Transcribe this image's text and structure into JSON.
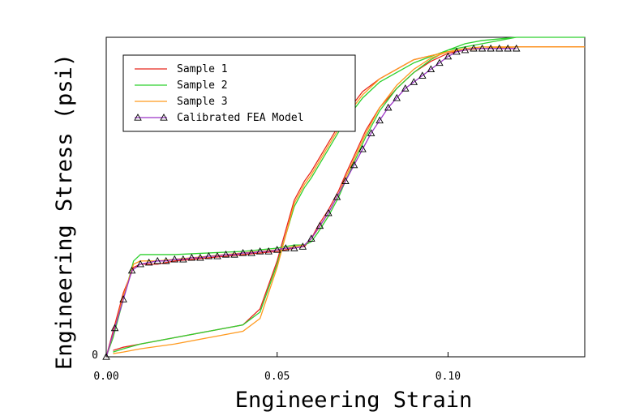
{
  "chart_data": {
    "type": "line",
    "title": "",
    "xlabel": "Engineering Strain",
    "ylabel": "Engineering Stress (psi)",
    "xlim": [
      0,
      0.14
    ],
    "ylim": [
      0,
      1.0
    ],
    "x_ticks": [
      0.0,
      0.05,
      0.1
    ],
    "x_tick_labels": [
      "0.00",
      "0.05",
      "0.10"
    ],
    "y_ticks": [
      0
    ],
    "y_tick_labels": [
      "0"
    ],
    "grid": false,
    "legend_position": "top-left",
    "series": [
      {
        "name": "Sample 1",
        "color": "#e8261c",
        "marker": "none",
        "x": [
          0,
          0.002,
          0.005,
          0.008,
          0.01,
          0.015,
          0.02,
          0.03,
          0.04,
          0.05,
          0.055,
          0.058,
          0.06,
          0.062,
          0.065,
          0.068,
          0.07,
          0.073,
          0.076,
          0.08,
          0.085,
          0.09,
          0.095,
          0.1,
          0.105,
          0.11,
          0.12,
          0.13,
          0.14,
          0.13,
          0.12,
          0.11,
          0.1,
          0.09,
          0.08,
          0.075,
          0.07,
          0.065,
          0.06,
          0.058,
          0.055,
          0.05,
          0.045,
          0.04,
          0.03,
          0.02,
          0.01,
          0.005,
          0.002
        ],
        "y": [
          0,
          0.08,
          0.2,
          0.28,
          0.29,
          0.29,
          0.3,
          0.31,
          0.32,
          0.33,
          0.34,
          0.345,
          0.37,
          0.41,
          0.46,
          0.52,
          0.57,
          0.64,
          0.71,
          0.78,
          0.84,
          0.89,
          0.925,
          0.95,
          0.96,
          0.965,
          0.97,
          0.97,
          0.97,
          0.97,
          0.97,
          0.965,
          0.955,
          0.93,
          0.87,
          0.83,
          0.76,
          0.67,
          0.58,
          0.55,
          0.49,
          0.3,
          0.15,
          0.1,
          0.08,
          0.06,
          0.04,
          0.03,
          0.02
        ]
      },
      {
        "name": "Sample 2",
        "color": "#2ed12e",
        "marker": "none",
        "x": [
          0,
          0.002,
          0.005,
          0.008,
          0.01,
          0.015,
          0.02,
          0.03,
          0.04,
          0.05,
          0.055,
          0.058,
          0.06,
          0.062,
          0.065,
          0.068,
          0.07,
          0.073,
          0.076,
          0.08,
          0.085,
          0.09,
          0.095,
          0.1,
          0.105,
          0.11,
          0.12,
          0.13,
          0.14,
          0.13,
          0.12,
          0.11,
          0.1,
          0.09,
          0.08,
          0.075,
          0.07,
          0.065,
          0.06,
          0.058,
          0.055,
          0.05,
          0.045,
          0.04,
          0.03,
          0.02,
          0.01,
          0.005,
          0.002
        ],
        "y": [
          0,
          0.06,
          0.18,
          0.3,
          0.32,
          0.32,
          0.32,
          0.325,
          0.33,
          0.34,
          0.35,
          0.35,
          0.36,
          0.39,
          0.44,
          0.5,
          0.55,
          0.62,
          0.69,
          0.77,
          0.84,
          0.89,
          0.93,
          0.96,
          0.98,
          0.99,
          1.0,
          1.0,
          1.0,
          1.0,
          1.0,
          0.98,
          0.96,
          0.92,
          0.86,
          0.81,
          0.74,
          0.65,
          0.56,
          0.53,
          0.47,
          0.29,
          0.14,
          0.1,
          0.08,
          0.06,
          0.04,
          0.025,
          0.015
        ]
      },
      {
        "name": "Sample 3",
        "color": "#ff9a1f",
        "marker": "none",
        "x": [
          0,
          0.002,
          0.005,
          0.008,
          0.01,
          0.015,
          0.02,
          0.03,
          0.04,
          0.05,
          0.055,
          0.058,
          0.06,
          0.062,
          0.065,
          0.068,
          0.07,
          0.073,
          0.076,
          0.08,
          0.085,
          0.09,
          0.095,
          0.1,
          0.105,
          0.11,
          0.12,
          0.13,
          0.14,
          0.13,
          0.12,
          0.11,
          0.1,
          0.09,
          0.08,
          0.075,
          0.07,
          0.065,
          0.06,
          0.058,
          0.055,
          0.05,
          0.045,
          0.04,
          0.03,
          0.02,
          0.01,
          0.005,
          0.002
        ],
        "y": [
          0,
          0.07,
          0.19,
          0.29,
          0.3,
          0.3,
          0.305,
          0.315,
          0.325,
          0.335,
          0.345,
          0.35,
          0.37,
          0.4,
          0.45,
          0.51,
          0.56,
          0.63,
          0.7,
          0.78,
          0.85,
          0.9,
          0.935,
          0.955,
          0.965,
          0.97,
          0.97,
          0.97,
          0.97,
          0.97,
          0.97,
          0.965,
          0.955,
          0.93,
          0.87,
          0.82,
          0.75,
          0.66,
          0.57,
          0.54,
          0.48,
          0.28,
          0.12,
          0.08,
          0.06,
          0.04,
          0.025,
          0.015,
          0.01
        ]
      },
      {
        "name": "Calibrated FEA Model",
        "color": "#9b33c7",
        "marker": "triangle",
        "x": [
          0.0,
          0.0025,
          0.005,
          0.0075,
          0.01,
          0.0125,
          0.015,
          0.0175,
          0.02,
          0.0225,
          0.025,
          0.0275,
          0.03,
          0.0325,
          0.035,
          0.0375,
          0.04,
          0.0425,
          0.045,
          0.0475,
          0.05,
          0.0525,
          0.055,
          0.0575,
          0.06,
          0.0625,
          0.065,
          0.0675,
          0.07,
          0.0725,
          0.075,
          0.0775,
          0.08,
          0.0825,
          0.085,
          0.0875,
          0.09,
          0.0925,
          0.095,
          0.0975,
          0.1,
          0.1025,
          0.105,
          0.1075,
          0.11,
          0.1125,
          0.115,
          0.1175,
          0.12
        ],
        "y": [
          0.0,
          0.09,
          0.18,
          0.27,
          0.29,
          0.295,
          0.3,
          0.3,
          0.305,
          0.305,
          0.31,
          0.31,
          0.315,
          0.315,
          0.32,
          0.32,
          0.325,
          0.325,
          0.33,
          0.33,
          0.335,
          0.34,
          0.34,
          0.345,
          0.37,
          0.41,
          0.45,
          0.5,
          0.55,
          0.6,
          0.65,
          0.7,
          0.74,
          0.78,
          0.81,
          0.84,
          0.86,
          0.88,
          0.9,
          0.92,
          0.94,
          0.955,
          0.96,
          0.965,
          0.965,
          0.965,
          0.965,
          0.965,
          0.965
        ]
      }
    ]
  }
}
